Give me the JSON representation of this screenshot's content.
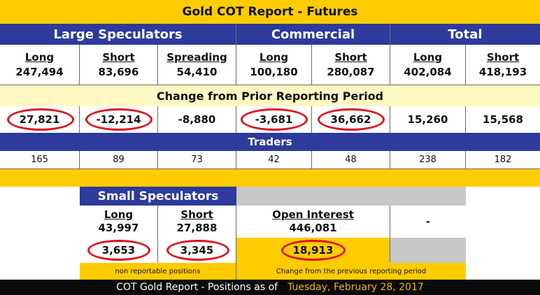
{
  "title": "Gold COT Report - Futures",
  "groups": {
    "large": "Large Speculators",
    "commercial": "Commercial",
    "total": "Total"
  },
  "columns": {
    "large_long": {
      "label": "Long",
      "value": "247,494"
    },
    "large_short": {
      "label": "Short",
      "value": "83,696"
    },
    "large_spreading": {
      "label": "Spreading",
      "value": "54,410"
    },
    "comm_long": {
      "label": "Long",
      "value": "100,180"
    },
    "comm_short": {
      "label": "Short",
      "value": "280,087"
    },
    "total_long": {
      "label": "Long",
      "value": "402,084"
    },
    "total_short": {
      "label": "Short",
      "value": "418,193"
    }
  },
  "change_label": "Change from Prior Reporting Period",
  "changes": {
    "large_long": "27,821",
    "large_short": "-12,214",
    "large_spreading": "-8,880",
    "comm_long": "-3,681",
    "comm_short": "36,662",
    "total_long": "15,260",
    "total_short": "15,568"
  },
  "traders_label": "Traders",
  "traders": {
    "large_long": "165",
    "large_short": "89",
    "large_spreading": "73",
    "comm_long": "42",
    "comm_short": "48",
    "total_long": "238",
    "total_short": "182"
  },
  "small": {
    "title": "Small Speculators",
    "long_label": "Long",
    "long_value": "43,997",
    "short_label": "Short",
    "short_value": "27,888",
    "long_change": "3,653",
    "short_change": "3,345",
    "note": "non reportable positions"
  },
  "open_interest": {
    "label": "Open Interest",
    "value": "446,081",
    "change": "18,913",
    "note": "Change from the previous reporting period"
  },
  "dash": "-",
  "footer": {
    "prefix": "COT Gold Report - Positions as of",
    "date": "Tuesday, February 28, 2017"
  },
  "colors": {
    "navy": "#2E3A9C",
    "gold": "#FFCC00",
    "cream": "#FFF8C2",
    "highlight_circle": "#E0121E"
  }
}
